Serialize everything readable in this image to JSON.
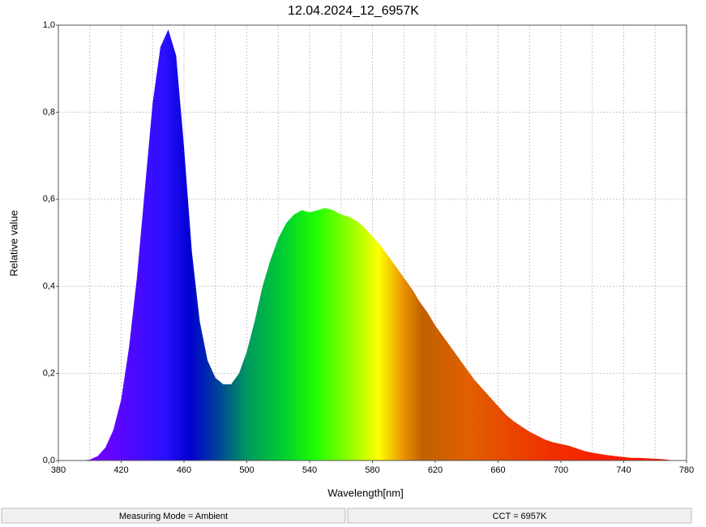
{
  "chart_data": {
    "type": "area",
    "title": "12.04.2024_12_6957K",
    "x_label": "Wavelength[nm]",
    "y_label": "Relative value",
    "x": [
      380,
      385,
      390,
      395,
      400,
      405,
      410,
      415,
      420,
      425,
      430,
      435,
      440,
      445,
      450,
      455,
      460,
      465,
      470,
      475,
      480,
      485,
      490,
      495,
      500,
      505,
      510,
      515,
      520,
      525,
      530,
      535,
      540,
      545,
      550,
      555,
      560,
      565,
      570,
      575,
      580,
      585,
      590,
      595,
      600,
      605,
      610,
      615,
      620,
      625,
      630,
      635,
      640,
      645,
      650,
      655,
      660,
      665,
      670,
      675,
      680,
      685,
      690,
      695,
      700,
      705,
      710,
      715,
      720,
      725,
      730,
      735,
      740,
      745,
      750,
      755,
      760,
      765,
      770,
      775,
      780
    ],
    "values": [
      0,
      0,
      0,
      0,
      0.002,
      0.01,
      0.03,
      0.07,
      0.14,
      0.26,
      0.42,
      0.62,
      0.82,
      0.95,
      0.99,
      0.93,
      0.72,
      0.48,
      0.32,
      0.23,
      0.19,
      0.175,
      0.175,
      0.2,
      0.25,
      0.32,
      0.4,
      0.46,
      0.51,
      0.545,
      0.565,
      0.575,
      0.57,
      0.575,
      0.58,
      0.575,
      0.565,
      0.56,
      0.55,
      0.535,
      0.515,
      0.495,
      0.47,
      0.445,
      0.42,
      0.395,
      0.365,
      0.34,
      0.31,
      0.285,
      0.26,
      0.235,
      0.21,
      0.185,
      0.165,
      0.145,
      0.125,
      0.105,
      0.09,
      0.078,
      0.066,
      0.057,
      0.048,
      0.042,
      0.038,
      0.034,
      0.028,
      0.022,
      0.018,
      0.015,
      0.012,
      0.01,
      0.008,
      0.006,
      0.006,
      0.005,
      0.004,
      0.003,
      0.001,
      0,
      0
    ],
    "xlim": [
      380,
      780
    ],
    "xticks": [
      380,
      420,
      460,
      500,
      540,
      580,
      620,
      660,
      700,
      740,
      780
    ],
    "x_minor_grid": [
      400,
      440,
      480,
      520,
      560,
      600,
      640,
      680,
      720,
      760
    ],
    "ylim": [
      0,
      1
    ],
    "yticks": [
      {
        "value": 0,
        "label": "0,0"
      },
      {
        "value": 0.2,
        "label": "0,2"
      },
      {
        "value": 0.4,
        "label": "0,4"
      },
      {
        "value": 0.6,
        "label": "0,6"
      },
      {
        "value": 0.8,
        "label": "0,8"
      },
      {
        "value": 1,
        "label": "1,0"
      }
    ],
    "grid": true
  },
  "status_bar": [
    "Measuring Mode = Ambient",
    "CCT = 6957K"
  ]
}
